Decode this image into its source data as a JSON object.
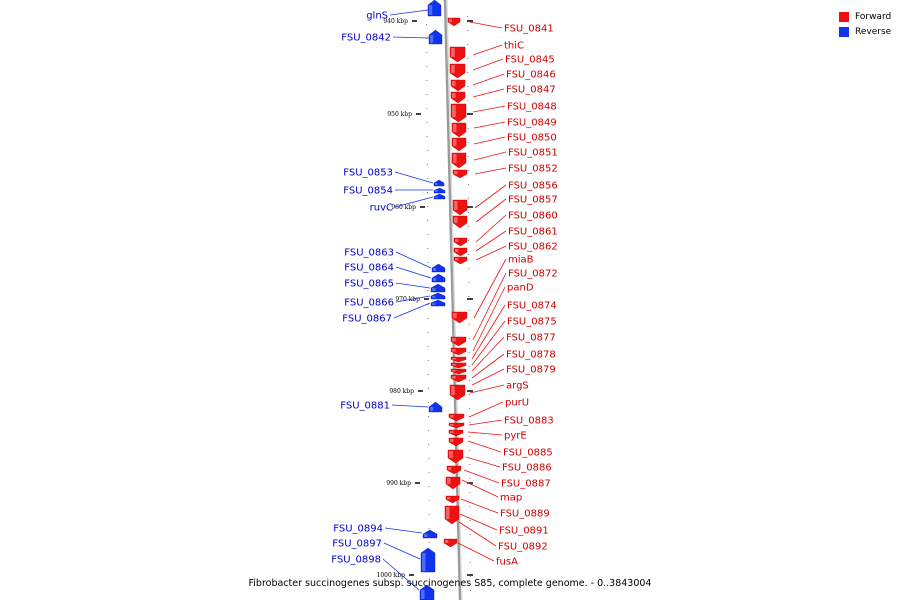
{
  "legend": [
    {
      "label": "Forward",
      "color": "#ee1111"
    },
    {
      "label": "Reverse",
      "color": "#1133ee"
    }
  ],
  "caption": "Fibrobacter succinogenes subsp. succinogenes S85, complete genome. - 0..3843004",
  "colors": {
    "forward": "#ee1111",
    "reverse": "#1133ee",
    "axis": "#999999"
  },
  "ticks": [
    {
      "label": "940 kbp",
      "kbp": 940
    },
    {
      "label": "950 kbp",
      "kbp": 950
    },
    {
      "label": "960 kbp",
      "kbp": 960
    },
    {
      "label": "970 kbp",
      "kbp": 970
    },
    {
      "label": "980 kbp",
      "kbp": 980
    },
    {
      "label": "990 kbp",
      "kbp": 990
    },
    {
      "label": "1000 kbp",
      "kbp": 1000
    }
  ],
  "forward_genes": [
    "FSU_0841",
    "thiC",
    "FSU_0845",
    "FSU_0846",
    "FSU_0847",
    "FSU_0848",
    "FSU_0849",
    "FSU_0850",
    "FSU_0851",
    "FSU_0852",
    "FSU_0856",
    "FSU_0857",
    "FSU_0860",
    "FSU_0861",
    "FSU_0862",
    "miaB",
    "FSU_0872",
    "panD",
    "FSU_0874",
    "FSU_0875",
    "FSU_0877",
    "FSU_0878",
    "FSU_0879",
    "argS",
    "purU",
    "FSU_0883",
    "pyrE",
    "FSU_0885",
    "FSU_0886",
    "FSU_0887",
    "map",
    "FSU_0889",
    "FSU_0891",
    "FSU_0892",
    "fusA"
  ],
  "reverse_genes": [
    "glnS",
    "FSU_0842",
    "FSU_0853",
    "FSU_0854",
    "ruvC",
    "FSU_0863",
    "FSU_0864",
    "FSU_0865",
    "FSU_0866",
    "FSU_0867",
    "FSU_0881",
    "FSU_0894",
    "FSU_0897",
    "FSU_0898"
  ]
}
